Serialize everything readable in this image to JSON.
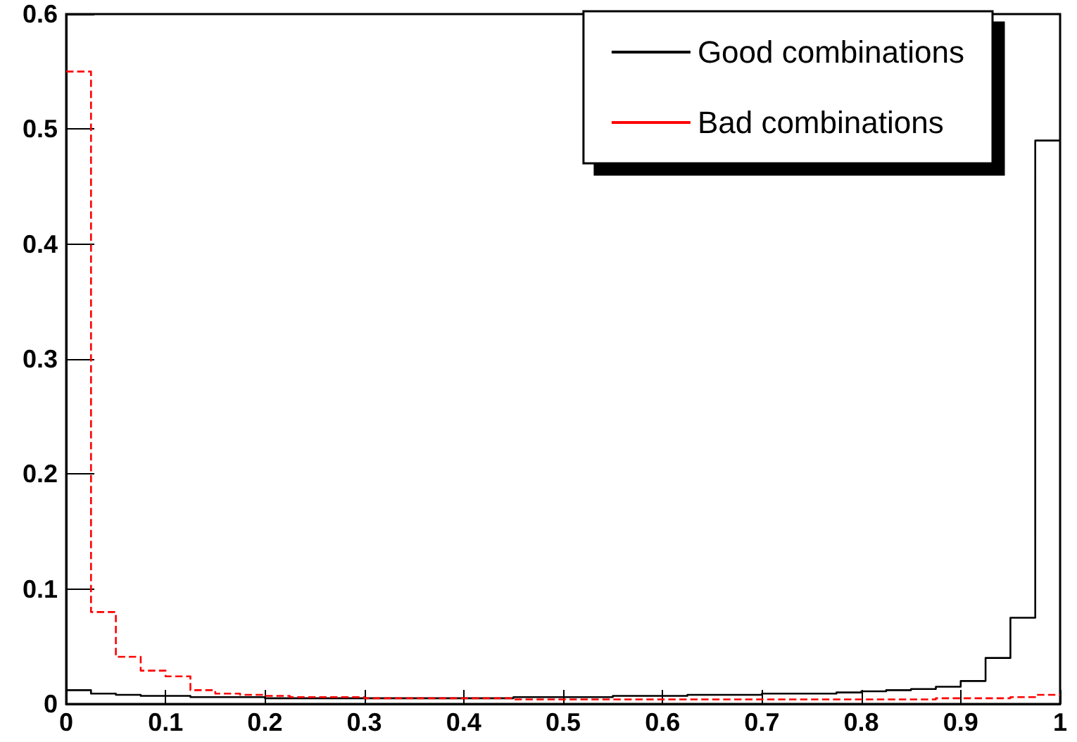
{
  "chart_data": {
    "type": "histogram",
    "bins": [
      0,
      0.025,
      0.05,
      0.075,
      0.1,
      0.125,
      0.15,
      0.175,
      0.2,
      0.225,
      0.25,
      0.275,
      0.3,
      0.325,
      0.35,
      0.375,
      0.4,
      0.425,
      0.45,
      0.475,
      0.5,
      0.525,
      0.55,
      0.575,
      0.6,
      0.625,
      0.65,
      0.675,
      0.7,
      0.725,
      0.75,
      0.775,
      0.8,
      0.825,
      0.85,
      0.875,
      0.9,
      0.925,
      0.95,
      0.975,
      1
    ],
    "series": [
      {
        "name": "Good combinations",
        "color": "#000000",
        "line_style": "solid",
        "values": [
          0.012,
          0.009,
          0.008,
          0.007,
          0.007,
          0.006,
          0.006,
          0.006,
          0.005,
          0.005,
          0.005,
          0.005,
          0.005,
          0.005,
          0.005,
          0.005,
          0.005,
          0.005,
          0.006,
          0.006,
          0.006,
          0.006,
          0.007,
          0.007,
          0.007,
          0.008,
          0.008,
          0.008,
          0.009,
          0.009,
          0.009,
          0.01,
          0.011,
          0.012,
          0.013,
          0.015,
          0.02,
          0.04,
          0.075,
          0.49
        ]
      },
      {
        "name": "Bad combinations",
        "color": "#ff0000",
        "line_style": "dashed",
        "values": [
          0.55,
          0.08,
          0.041,
          0.029,
          0.024,
          0.012,
          0.009,
          0.008,
          0.007,
          0.006,
          0.006,
          0.006,
          0.005,
          0.005,
          0.005,
          0.005,
          0.005,
          0.005,
          0.004,
          0.004,
          0.004,
          0.004,
          0.004,
          0.004,
          0.004,
          0.004,
          0.004,
          0.004,
          0.004,
          0.004,
          0.004,
          0.004,
          0.004,
          0.004,
          0.004,
          0.005,
          0.005,
          0.005,
          0.006,
          0.008
        ]
      }
    ],
    "xlim": [
      0,
      1
    ],
    "xticks": [
      0,
      0.1,
      0.2,
      0.3,
      0.4,
      0.5,
      0.6,
      0.7,
      0.8,
      0.9,
      1
    ],
    "ylim": [
      0,
      0.6
    ],
    "yticks": [
      0,
      0.1,
      0.2,
      0.3,
      0.4,
      0.5,
      0.6
    ],
    "grid": false,
    "legend": "top right"
  }
}
